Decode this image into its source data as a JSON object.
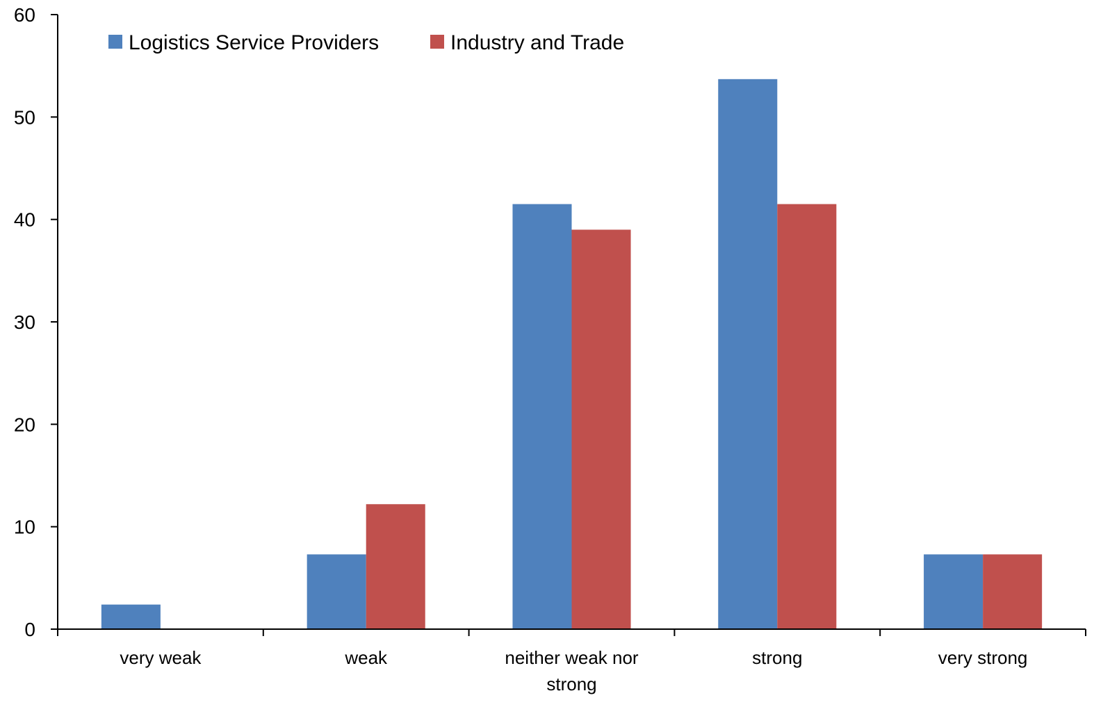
{
  "chart_data": {
    "type": "bar",
    "title": "",
    "xlabel": "",
    "ylabel": "",
    "categories": [
      [
        "very weak"
      ],
      [
        "weak"
      ],
      [
        "neither weak nor",
        "strong"
      ],
      [
        "strong"
      ],
      [
        "very strong"
      ]
    ],
    "series": [
      {
        "name": "Logistics Service Providers",
        "color": "#4F81BD",
        "values": [
          2.4,
          7.3,
          41.5,
          53.7,
          7.3
        ]
      },
      {
        "name": "Industry and Trade",
        "color": "#C0504D",
        "values": [
          0,
          12.2,
          39.0,
          41.5,
          7.3
        ]
      }
    ],
    "ylim": [
      0,
      60
    ],
    "yticks": [
      0,
      10,
      20,
      30,
      40,
      50,
      60
    ],
    "grid": false,
    "legend_position": "top-left"
  }
}
